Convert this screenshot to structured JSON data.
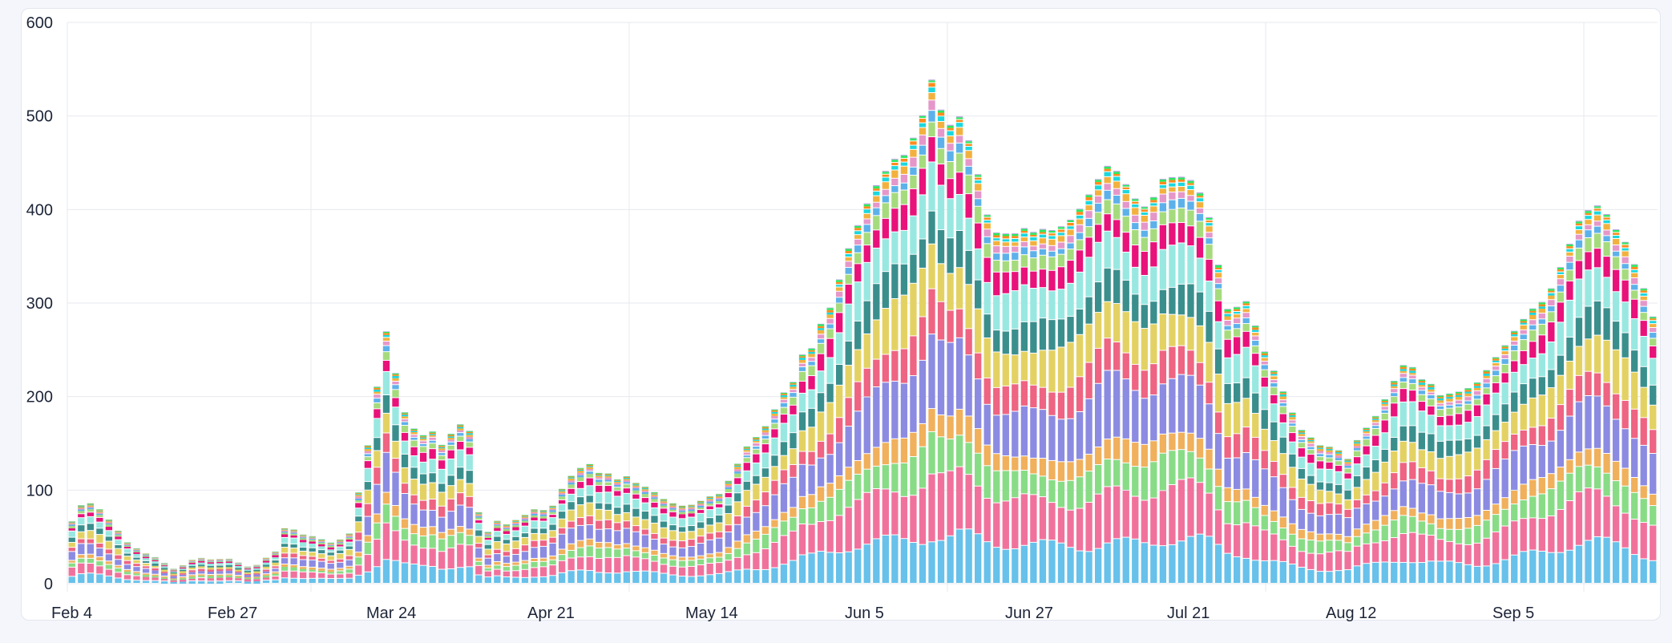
{
  "chart_data": {
    "type": "bar",
    "stacked": true,
    "title": "",
    "xlabel": "",
    "ylabel": "",
    "ylim": [
      0,
      600
    ],
    "grid": true,
    "legend": "none",
    "x_start": "Feb 4",
    "x_tick_labels": [
      "Feb 4",
      "Feb 27",
      "Mar 24",
      "Apr 21",
      "May 14",
      "Jun 5",
      "Jun 27",
      "Jul 21",
      "Aug 12",
      "Sep 5"
    ],
    "y_tick_labels": [
      "0",
      "100",
      "200",
      "300",
      "400",
      "500",
      "600"
    ],
    "series_colors": [
      "#67c1ea",
      "#f0729c",
      "#88dc86",
      "#f0b05c",
      "#8c8be2",
      "#ee6482",
      "#e3d263",
      "#3a8f8d",
      "#98e8e1",
      "#e8127a",
      "#a5db7d",
      "#5db1ea",
      "#e597c9",
      "#f2b13f",
      "#1bd8dd",
      "#ff8b1c",
      "#2de85f",
      "#b4a2e0"
    ],
    "series_weights": [
      0.105,
      0.125,
      0.075,
      0.05,
      0.135,
      0.075,
      0.1,
      0.075,
      0.09,
      0.055,
      0.035,
      0.02,
      0.018,
      0.016,
      0.01,
      0.008,
      0.006,
      0.002
    ],
    "totals": [
      65,
      82,
      85,
      80,
      70,
      58,
      45,
      38,
      32,
      28,
      22,
      16,
      20,
      26,
      28,
      26,
      26,
      26,
      22,
      18,
      20,
      28,
      35,
      60,
      58,
      52,
      50,
      47,
      44,
      48,
      55,
      100,
      150,
      210,
      265,
      220,
      180,
      165,
      160,
      165,
      150,
      160,
      168,
      160,
      75,
      55,
      68,
      65,
      70,
      75,
      80,
      78,
      82,
      100,
      115,
      125,
      130,
      120,
      118,
      110,
      112,
      105,
      102,
      98,
      92,
      88,
      85,
      85,
      88,
      92,
      95,
      110,
      130,
      150,
      160,
      170,
      185,
      200,
      210,
      240,
      250,
      280,
      300,
      330,
      360,
      380,
      400,
      420,
      440,
      460,
      470,
      490,
      510,
      540,
      500,
      480,
      490,
      470,
      440,
      400,
      380,
      375,
      370,
      372,
      368,
      375,
      380,
      390,
      400,
      410,
      420,
      430,
      440,
      435,
      425,
      415,
      410,
      420,
      435,
      430,
      425,
      420,
      410,
      390,
      345,
      300,
      302,
      305,
      275,
      245,
      225,
      205,
      185,
      168,
      160,
      150,
      146,
      140,
      130,
      150,
      165,
      180,
      200,
      220,
      235,
      230,
      215,
      210,
      200,
      205,
      210,
      215,
      220,
      230,
      240,
      250,
      265,
      280,
      295,
      305,
      320,
      340,
      360,
      380,
      390,
      398,
      395,
      385,
      375,
      350,
      320,
      285
    ]
  }
}
